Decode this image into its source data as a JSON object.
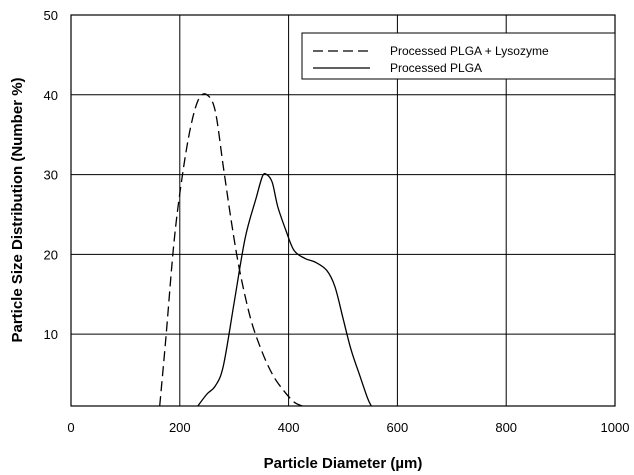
{
  "chart_data": {
    "type": "line",
    "xlabel": "Particle Diameter (µm)",
    "ylabel": "Particle Size Distribution (Number %)",
    "xlim": [
      0,
      1000
    ],
    "ylim": [
      1,
      50
    ],
    "xticks": [
      "0",
      "200",
      "400",
      "600",
      "800",
      "1000"
    ],
    "yticks": [
      "10",
      "20",
      "30",
      "40",
      "50"
    ],
    "grid": true,
    "legend": "top-right",
    "series": [
      {
        "name": "Processed PLGA + Lysozyme",
        "style": "dashed",
        "color": "#000000",
        "points": [
          [
            163,
            1
          ],
          [
            175,
            10
          ],
          [
            190,
            22
          ],
          [
            205,
            30
          ],
          [
            220,
            36
          ],
          [
            235,
            39.5
          ],
          [
            250,
            40
          ],
          [
            265,
            38
          ],
          [
            280,
            31
          ],
          [
            295,
            24
          ],
          [
            310,
            18
          ],
          [
            330,
            12
          ],
          [
            350,
            8
          ],
          [
            370,
            5
          ],
          [
            390,
            3
          ],
          [
            410,
            1.5
          ],
          [
            425,
            1
          ]
        ]
      },
      {
        "name": "Processed PLGA",
        "style": "solid",
        "color": "#000000",
        "points": [
          [
            233,
            1
          ],
          [
            250,
            2.5
          ],
          [
            265,
            3.5
          ],
          [
            280,
            6
          ],
          [
            300,
            14
          ],
          [
            320,
            22
          ],
          [
            340,
            27
          ],
          [
            352,
            29.8
          ],
          [
            360,
            30
          ],
          [
            370,
            29
          ],
          [
            380,
            26
          ],
          [
            395,
            23
          ],
          [
            410,
            20.5
          ],
          [
            430,
            19.5
          ],
          [
            450,
            19
          ],
          [
            470,
            18
          ],
          [
            485,
            16
          ],
          [
            500,
            12
          ],
          [
            515,
            8
          ],
          [
            530,
            5
          ],
          [
            545,
            2
          ],
          [
            552,
            1
          ]
        ]
      }
    ]
  }
}
